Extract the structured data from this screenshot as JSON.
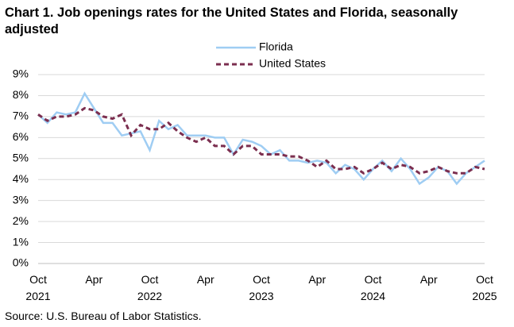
{
  "chart_data": {
    "type": "line",
    "title": "Chart 1. Job openings rates for the United States and Florida, seasonally adjusted",
    "source": "Source: U.S. Bureau of Labor Statistics.",
    "categories": [
      "Oct 2021",
      null,
      null,
      null,
      null,
      null,
      "Apr",
      null,
      null,
      null,
      null,
      null,
      "Oct 2022",
      null,
      null,
      null,
      null,
      null,
      "Apr",
      null,
      null,
      null,
      null,
      null,
      "Oct 2023",
      null,
      null,
      null,
      null,
      null,
      "Apr",
      null,
      null,
      null,
      null,
      null,
      "Oct 2024",
      null,
      null,
      null,
      null,
      null,
      "Apr",
      null,
      null,
      null,
      null,
      null,
      "Oct 2025"
    ],
    "series": [
      {
        "name": "Florida",
        "color": "#9fcdf3",
        "dash": false,
        "values": [
          7.1,
          6.7,
          7.2,
          7.1,
          7.2,
          8.1,
          7.4,
          6.7,
          6.7,
          6.1,
          6.2,
          6.3,
          5.4,
          6.8,
          6.4,
          6.6,
          6.1,
          6.1,
          6.1,
          6.0,
          6.0,
          5.2,
          5.9,
          5.8,
          5.6,
          5.2,
          5.4,
          4.9,
          4.9,
          4.8,
          4.9,
          4.8,
          4.3,
          4.7,
          4.5,
          4.0,
          4.5,
          4.9,
          4.4,
          5.0,
          4.5,
          3.8,
          4.1,
          4.6,
          4.4,
          3.8,
          4.3,
          4.6,
          4.9
        ]
      },
      {
        "name": "United States",
        "color": "#7b2e4f",
        "dash": true,
        "values": [
          7.1,
          6.8,
          7.0,
          7.0,
          7.1,
          7.4,
          7.3,
          7.0,
          6.9,
          7.1,
          6.1,
          6.6,
          6.4,
          6.4,
          6.7,
          6.3,
          6.0,
          5.8,
          6.0,
          5.6,
          5.6,
          5.2,
          5.6,
          5.6,
          5.2,
          5.2,
          5.2,
          5.1,
          5.1,
          4.9,
          4.6,
          4.9,
          4.5,
          4.5,
          4.6,
          4.3,
          4.5,
          4.8,
          4.5,
          4.7,
          4.6,
          4.3,
          4.4,
          4.6,
          4.4,
          4.3,
          4.3,
          4.6,
          4.5
        ]
      }
    ],
    "ylim": [
      0,
      9
    ],
    "yticks": [
      {
        "value": 0,
        "label": "0%"
      },
      {
        "value": 1,
        "label": "1%"
      },
      {
        "value": 2,
        "label": "2%"
      },
      {
        "value": 3,
        "label": "3%"
      },
      {
        "value": 4,
        "label": "4%"
      },
      {
        "value": 5,
        "label": "5%"
      },
      {
        "value": 6,
        "label": "6%"
      },
      {
        "value": 7,
        "label": "7%"
      },
      {
        "value": 8,
        "label": "8%"
      },
      {
        "value": 9,
        "label": "9%"
      }
    ],
    "grid": true
  }
}
